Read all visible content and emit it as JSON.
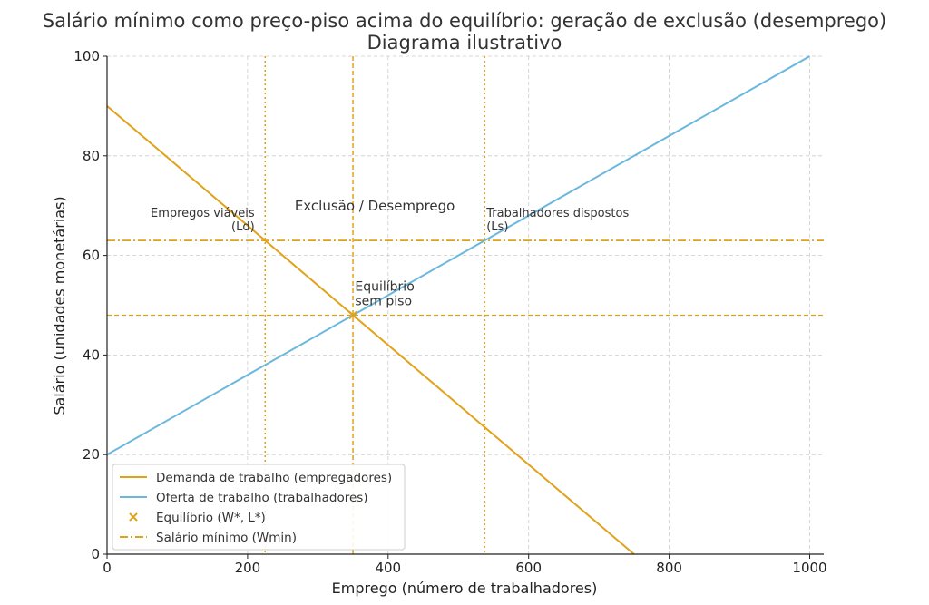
{
  "chart_data": {
    "type": "line",
    "title": "Salário mínimo como preço-piso acima do equilíbrio: geração de exclusão (desemprego)",
    "subtitle": "Diagrama ilustrativo",
    "xlabel": "Emprego (número de trabalhadores)",
    "ylabel": "Salário (unidades monetárias)",
    "xlim": [
      0,
      1020
    ],
    "ylim": [
      0,
      100
    ],
    "xticks": [
      0,
      200,
      400,
      600,
      800,
      1000
    ],
    "yticks": [
      0,
      20,
      40,
      60,
      80,
      100
    ],
    "grid": true,
    "legend_position": "lower-left",
    "series": [
      {
        "name": "Demanda de trabalho (empregadores)",
        "color": "#E1A21A",
        "style": "solid",
        "x": [
          0,
          750
        ],
        "y": [
          90,
          0
        ]
      },
      {
        "name": "Oferta de trabalho (trabalhadores)",
        "color": "#6BB8DE",
        "style": "solid",
        "x": [
          0,
          1000
        ],
        "y": [
          20,
          100
        ]
      }
    ],
    "equilibrium": {
      "name": "Equilíbrio (W*, L*)",
      "x": 350,
      "y": 48,
      "color": "#E1A21A",
      "marker": "x"
    },
    "min_wage": {
      "name": "Salário mínimo (Wmin)",
      "y": 63,
      "color": "#E1A21A",
      "style": "dashdot"
    },
    "vertical_lines": [
      {
        "x": 225,
        "style": "dotted",
        "color": "#E1A21A"
      },
      {
        "x": 350,
        "style": "dashed",
        "color": "#E1A21A"
      },
      {
        "x": 537.5,
        "style": "dotted",
        "color": "#E1A21A"
      }
    ],
    "horizontal_lines": [
      {
        "y": 48,
        "style": "dashed",
        "color": "#E1A21A"
      }
    ],
    "annotations": [
      {
        "id": "ld",
        "lines": [
          "Empregos viáveis",
          "(Ld)"
        ],
        "x": 210,
        "y": 65,
        "anchor": "end",
        "size": 13
      },
      {
        "id": "ls",
        "lines": [
          "Trabalhadores dispostos",
          "(Ls)"
        ],
        "x": 540,
        "y": 65,
        "anchor": "start",
        "size": 13
      },
      {
        "id": "exclusion",
        "lines": [
          "Exclusão / Desemprego"
        ],
        "x": 381,
        "y": 69,
        "anchor": "middle",
        "size": 15
      },
      {
        "id": "eq",
        "lines": [
          "Equilíbrio",
          "sem piso"
        ],
        "x": 353,
        "y": 50,
        "anchor": "start",
        "size": 14
      }
    ]
  }
}
